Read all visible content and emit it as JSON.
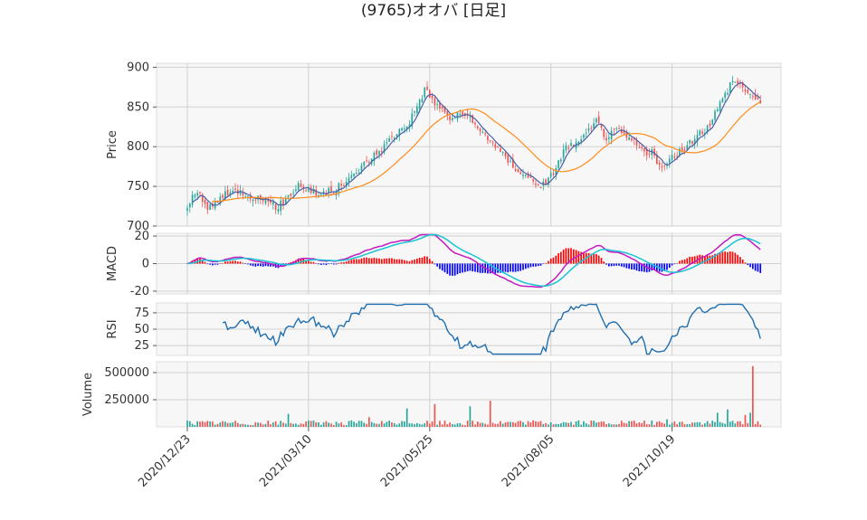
{
  "chart_data": {
    "type": "candlestick",
    "title": "(9765)オオバ  [日足]",
    "panels": [
      {
        "id": "price",
        "ylabel": "Price",
        "yticks": [
          700,
          750,
          800,
          850,
          900
        ],
        "ylim": [
          700,
          905
        ]
      },
      {
        "id": "macd",
        "ylabel": "MACD",
        "yticks": [
          -20,
          0,
          20
        ],
        "ylim": [
          -22,
          22
        ]
      },
      {
        "id": "rsi",
        "ylabel": "RSI",
        "yticks": [
          25,
          50,
          75
        ],
        "ylim": [
          10,
          90
        ]
      },
      {
        "id": "volume",
        "ylabel": "Volume",
        "yticks": [
          250000,
          500000
        ],
        "ylim": [
          0,
          600000
        ]
      }
    ],
    "x_ticks": [
      "2020/12/23",
      "2021/03/10",
      "2021/05/25",
      "2021/08/05",
      "2021/10/19"
    ],
    "n_days": 228,
    "price_close_keypoints": [
      [
        0,
        727
      ],
      [
        4,
        742
      ],
      [
        8,
        722
      ],
      [
        14,
        738
      ],
      [
        20,
        745
      ],
      [
        28,
        735
      ],
      [
        36,
        724
      ],
      [
        44,
        752
      ],
      [
        52,
        740
      ],
      [
        58,
        745
      ],
      [
        64,
        758
      ],
      [
        70,
        778
      ],
      [
        76,
        795
      ],
      [
        82,
        815
      ],
      [
        88,
        832
      ],
      [
        94,
        872
      ],
      [
        99,
        852
      ],
      [
        104,
        836
      ],
      [
        110,
        842
      ],
      [
        114,
        825
      ],
      [
        118,
        815
      ],
      [
        122,
        802
      ],
      [
        126,
        785
      ],
      [
        132,
        768
      ],
      [
        138,
        755
      ],
      [
        142,
        752
      ],
      [
        146,
        775
      ],
      [
        150,
        800
      ],
      [
        156,
        806
      ],
      [
        162,
        832
      ],
      [
        166,
        812
      ],
      [
        170,
        820
      ],
      [
        176,
        808
      ],
      [
        180,
        796
      ],
      [
        184,
        792
      ],
      [
        188,
        772
      ],
      [
        194,
        792
      ],
      [
        200,
        806
      ],
      [
        206,
        825
      ],
      [
        212,
        860
      ],
      [
        216,
        885
      ],
      [
        222,
        870
      ],
      [
        228,
        850
      ]
    ],
    "series": [
      {
        "name": "short_ma",
        "color": "#4a5fa8"
      },
      {
        "name": "long_ma",
        "color": "#ff8c1a"
      },
      {
        "name": "macd",
        "color": "#c21bc2"
      },
      {
        "name": "signal",
        "color": "#19c3d3"
      },
      {
        "name": "histogram_positive",
        "color": "#ff0000"
      },
      {
        "name": "histogram_negative",
        "color": "#0000ff"
      },
      {
        "name": "rsi",
        "color": "#1f6fb0"
      }
    ],
    "candle_colors": {
      "up": "#26a69a",
      "down": "#ef5350"
    },
    "grid": true
  }
}
